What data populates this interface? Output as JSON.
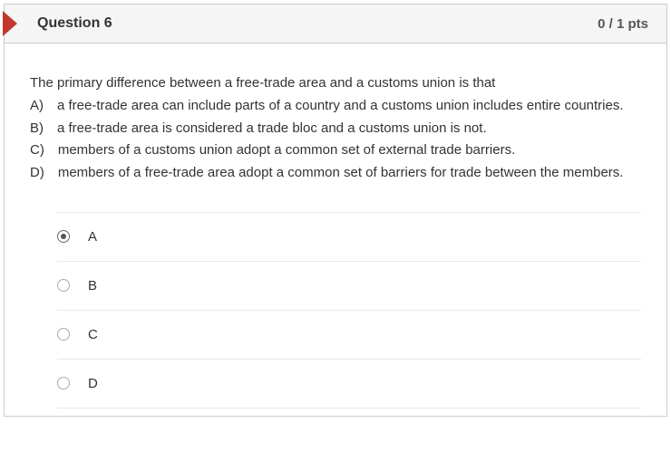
{
  "header": {
    "title": "Question 6",
    "points": "0 / 1 pts",
    "indicator_color": "#c0392b"
  },
  "question": {
    "text": "The primary difference between a free-trade area and a customs union is that\nA) a free-trade area can include parts of a country and a customs union includes entire countries.\nB) a free-trade area is considered a trade bloc and a customs union is not.\nC) members of a customs union adopt a common set of external trade barriers.\nD) members of a free-trade area adopt a common set of barriers for trade between the members."
  },
  "options": [
    {
      "label": "A",
      "selected": true
    },
    {
      "label": "B",
      "selected": false
    },
    {
      "label": "C",
      "selected": false
    },
    {
      "label": "D",
      "selected": false
    }
  ],
  "colors": {
    "header_bg": "#f5f5f5",
    "border": "#cccccc",
    "text": "#333333",
    "divider": "#e8e8e8"
  }
}
